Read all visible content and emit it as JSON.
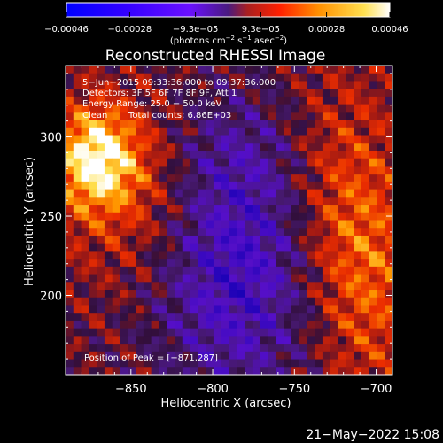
{
  "chart_data": {
    "type": "heatmap",
    "title": "Reconstructed RHESSI Image",
    "xlabel": "Heliocentric X (arcsec)",
    "ylabel": "Heliocentric Y (arcsec)",
    "xlim": [
      -890,
      -690
    ],
    "ylim": [
      150,
      345
    ],
    "xticks": [
      -850,
      -800,
      -750,
      -700
    ],
    "xtick_labels": [
      "−850",
      "−800",
      "−750",
      "−700"
    ],
    "yticks": [
      200,
      250,
      300
    ],
    "ytick_labels": [
      "200",
      "250",
      "300"
    ],
    "colorbar": {
      "range": [
        -0.00046,
        0.00046
      ],
      "tick_values": [
        -0.00046,
        -0.00028,
        -9.3e-05,
        9.3e-05,
        0.00028,
        0.00046
      ],
      "tick_labels": [
        "−0.00046",
        "−0.00028",
        "−9.3e−05",
        "9.3e−05",
        "0.00028",
        "0.00046"
      ],
      "units_parts": [
        "(photons cm",
        "−2",
        " s",
        "−1",
        " asec",
        "−2",
        ")"
      ],
      "colors": [
        "#0000ff",
        "#5a00ff",
        "#ff4000",
        "#ffe066",
        "#ffffff"
      ]
    },
    "annotations": {
      "time_range": "5−Jun−2015 09:33:36.000 to 09:37:36.000",
      "detectors": "Detectors: 3F 5F 6F 7F 8F 9F, Att 1",
      "energy_range": "Energy Range: 25.0 − 50.0 keV",
      "clean_label": "Clean",
      "total_counts": "Total counts: 6.86E+03",
      "peak": "Position of Peak = [−871,287]"
    },
    "peak_position": [
      -871,
      287
    ]
  },
  "footer": {
    "timestamp": "21−May−2022 15:08"
  }
}
